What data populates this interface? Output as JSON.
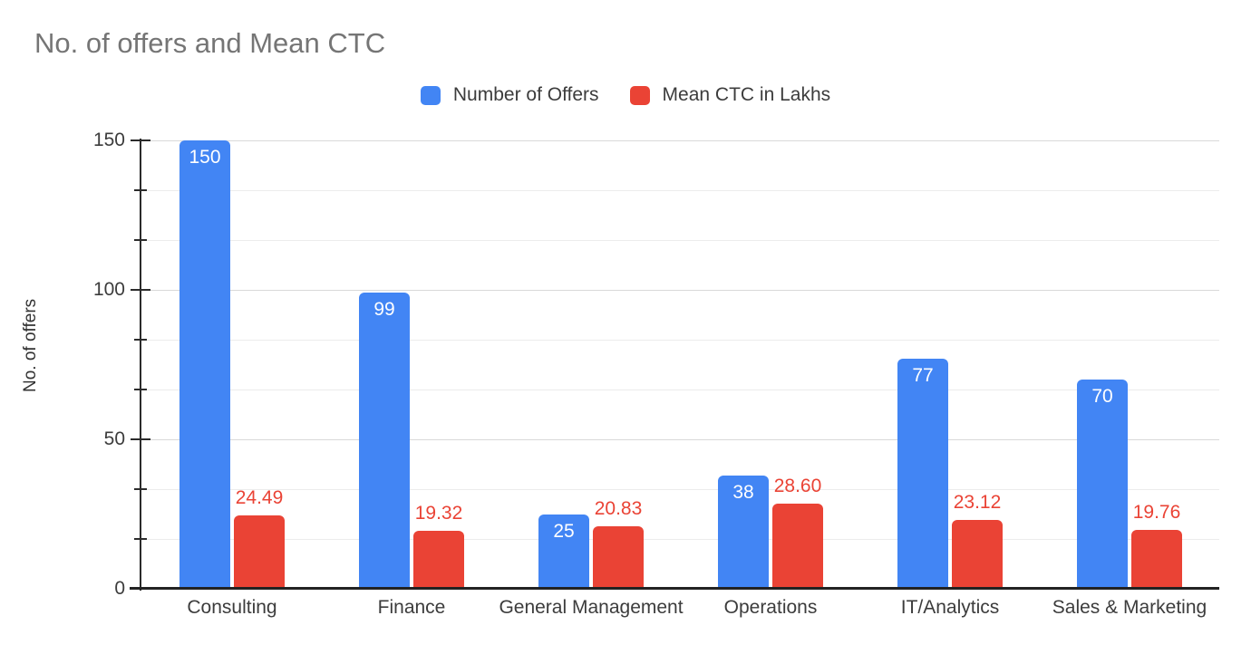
{
  "chart_data": {
    "type": "bar",
    "title": "No. of offers and Mean CTC",
    "ylabel": "No. of offers",
    "xlabel": "",
    "categories": [
      "Consulting",
      "Finance",
      "General Management",
      "Operations",
      "IT/Analytics",
      "Sales & Marketing"
    ],
    "series": [
      {
        "name": "Number of Offers",
        "color": "#4285F4",
        "values": [
          150,
          99,
          25,
          38,
          77,
          70
        ],
        "labels": [
          "150",
          "99",
          "25",
          "38",
          "77",
          "70"
        ],
        "label_color": "#ffffff",
        "label_placement": "inside-top"
      },
      {
        "name": "Mean CTC in Lakhs",
        "color": "#EA4335",
        "values": [
          24.49,
          19.32,
          20.83,
          28.6,
          23.12,
          19.76
        ],
        "labels": [
          "24.49",
          "19.32",
          "20.83",
          "28.60",
          "23.12",
          "19.76"
        ],
        "label_color": "#EA4335",
        "label_placement": "above"
      }
    ],
    "ylim": [
      0,
      150
    ],
    "y_ticks": [
      0,
      50,
      100,
      150
    ],
    "y_tick_labels": [
      "0",
      "50",
      "100",
      "150"
    ],
    "y_minor_divisions": 3,
    "grid": true,
    "legend_position": "top"
  }
}
